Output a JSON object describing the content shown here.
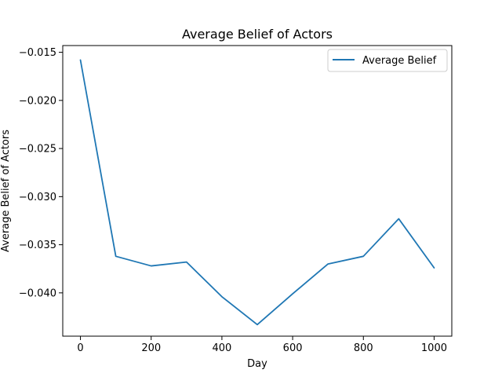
{
  "chart_data": {
    "type": "line",
    "title": "Average Belief of Actors",
    "xlabel": "Day",
    "ylabel": "Average Belief of Actors",
    "xlim": [
      -50,
      1050
    ],
    "ylim": [
      -0.0445,
      -0.0143
    ],
    "xticks": [
      0,
      200,
      400,
      600,
      800,
      1000
    ],
    "xtick_labels": [
      "0",
      "200",
      "400",
      "600",
      "800",
      "1000"
    ],
    "yticks": [
      -0.04,
      -0.035,
      -0.03,
      -0.025,
      -0.02,
      -0.015
    ],
    "ytick_labels": [
      "−0.040",
      "−0.035",
      "−0.030",
      "−0.025",
      "−0.020",
      "−0.015"
    ],
    "grid": false,
    "legend_position": "top-right",
    "series": [
      {
        "name": "Average Belief",
        "color": "#1f77b4",
        "x": [
          0,
          100,
          200,
          300,
          400,
          500,
          600,
          700,
          800,
          900,
          1000
        ],
        "y": [
          -0.0158,
          -0.0362,
          -0.0372,
          -0.0368,
          -0.0404,
          -0.0433,
          -0.0401,
          -0.037,
          -0.0362,
          -0.0323,
          -0.0374
        ]
      }
    ]
  }
}
